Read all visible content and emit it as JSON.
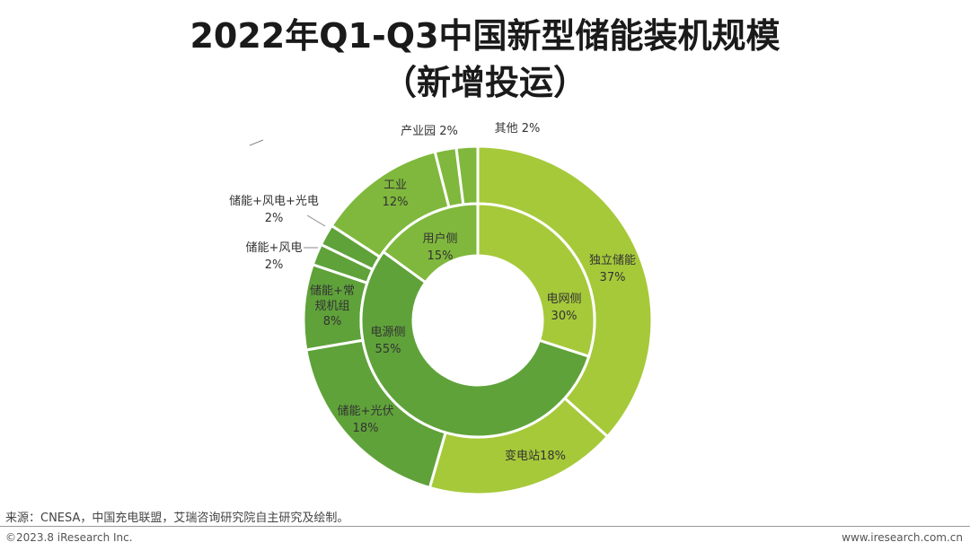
{
  "title_line1": "2022年Q1-Q3中国新型储能装机规模",
  "title_line2": "（新增投运）",
  "footer": {
    "source": "来源：CNESA，中国充电联盟，艾瑞咨询研究院自主研究及绘制。",
    "copyright": "©2023.8 iResearch Inc.",
    "website": "www.iresearch.com.cn"
  },
  "colors": {
    "light": "#a6c93a",
    "mid": "#7fb83c",
    "dark": "#5fa23a",
    "border": "#ffffff",
    "label": "#333333"
  },
  "chart_data": {
    "type": "pie",
    "title": "2022年Q1-Q3中国新型储能装机规模（新增投运）",
    "unit": "%",
    "inner_ring": [
      {
        "name": "电网侧",
        "value": 30,
        "label": "30%",
        "color": "#a6c93a"
      },
      {
        "name": "电源侧",
        "value": 55,
        "label": "55%",
        "color": "#5fa23a"
      },
      {
        "name": "用户侧",
        "value": 15,
        "label": "15%",
        "color": "#7fb83c"
      }
    ],
    "outer_ring": [
      {
        "name": "独立储能",
        "value": 37,
        "label": "37%",
        "color": "#a6c93a"
      },
      {
        "name": "变电站",
        "value": 18,
        "label": "18%",
        "color": "#a6c93a"
      },
      {
        "name": "储能+光伏",
        "value": 18,
        "label": "18%",
        "color": "#5fa23a"
      },
      {
        "name": "储能+常规机组",
        "value": 8,
        "label": "8%",
        "color": "#5fa23a"
      },
      {
        "name": "储能+风电",
        "value": 2,
        "label": "2%",
        "color": "#5fa23a"
      },
      {
        "name": "储能+风电+光电",
        "value": 2,
        "label": "2%",
        "color": "#5fa23a"
      },
      {
        "name": "工业",
        "value": 12,
        "label": "12%",
        "color": "#7fb83c"
      },
      {
        "name": "产业园",
        "value": 2,
        "label": "2%",
        "color": "#7fb83c"
      },
      {
        "name": "其他",
        "value": 2,
        "label": "2%",
        "color": "#7fb83c"
      }
    ]
  }
}
